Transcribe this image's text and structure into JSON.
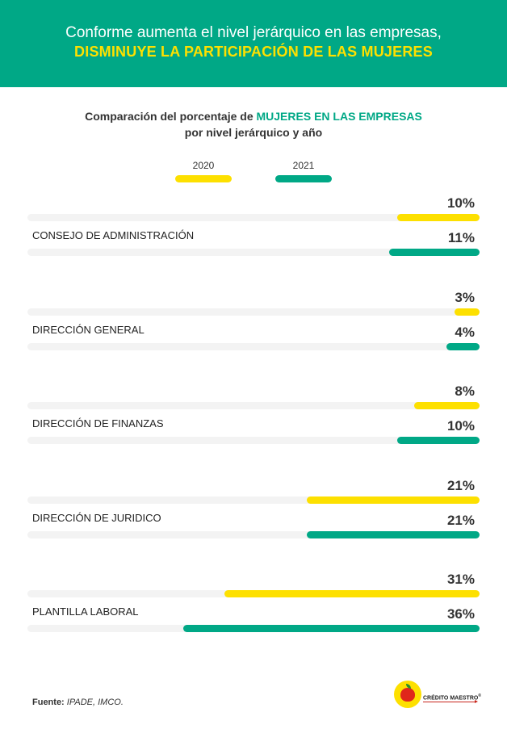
{
  "header": {
    "line1": "Conforme aumenta el nivel jerárquico en las empresas,",
    "line2": "DISMINUYE LA PARTICIPACIÓN DE LAS MUJERES"
  },
  "subtitle": {
    "pre": "Comparación del porcentaje de ",
    "highlight": "MUJERES EN LAS EMPRESAS",
    "line2": "por nivel jerárquico y año"
  },
  "colors": {
    "c2020": "#fde000",
    "c2021": "#00a886"
  },
  "chart_data": {
    "type": "bar",
    "orientation": "horizontal",
    "title": "Comparación del porcentaje de MUJERES EN LAS EMPRESAS por nivel jerárquico y año",
    "categories": [
      "CONSEJO DE ADMINISTRACIÓN",
      "DIRECCIÓN GENERAL",
      "DIRECCIÓN DE FINANZAS",
      "DIRECCIÓN DE JURIDICO",
      "PLANTILLA LABORAL"
    ],
    "series": [
      {
        "name": "2020",
        "values": [
          10,
          3,
          8,
          21,
          31
        ],
        "labels": [
          "10%",
          "3%",
          "8%",
          "21%",
          "31%"
        ]
      },
      {
        "name": "2021",
        "values": [
          11,
          4,
          10,
          21,
          36
        ],
        "labels": [
          "11%",
          "4%",
          "10%",
          "21%",
          "36%"
        ]
      }
    ],
    "xlim": [
      0,
      55
    ],
    "legend": "top"
  },
  "footer": {
    "label": "Fuente:",
    "source": "IPADE, IMCO."
  },
  "logo": {
    "text": "CRÉDITO MAESTRO",
    "mark": "®"
  }
}
